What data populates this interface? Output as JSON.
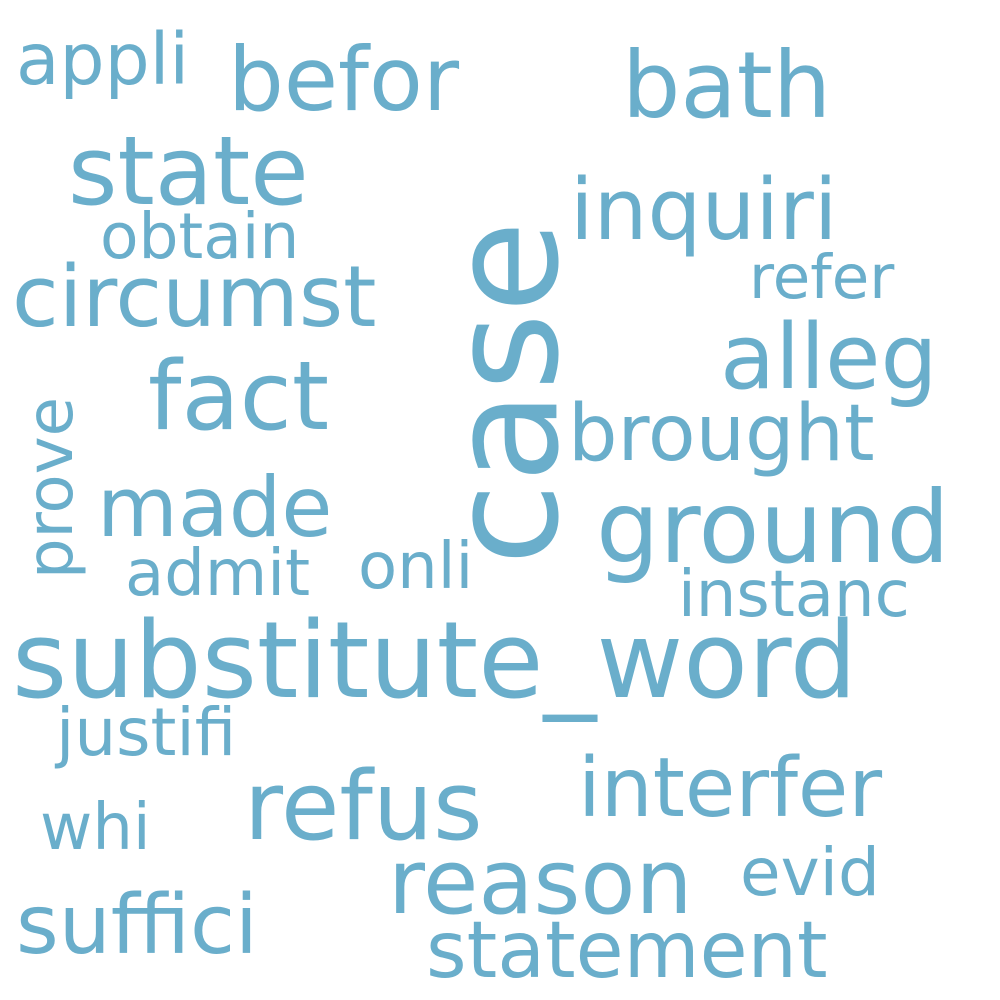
{
  "word_color": "#6aaecb",
  "background": "#ffffff",
  "words": {
    "case": "case",
    "substitute_word": "substitute_word",
    "ground": "ground",
    "state": "state",
    "fact": "fact",
    "bath": "bath",
    "befor": "befor",
    "circumst": "circumst",
    "alleg": "alleg",
    "interfer": "interfer",
    "refus": "refus",
    "reason": "reason",
    "statement": "statement",
    "made": "made",
    "inquiri": "inquiri",
    "brought": "brought",
    "suffici": "suffici",
    "appli": "appli",
    "obtain": "obtain",
    "refer": "refer",
    "prove": "prove",
    "admit": "admit",
    "onli": "onli",
    "instanc": "instanc",
    "justifi": "justifi",
    "whi": "whi",
    "evid": "evid"
  }
}
